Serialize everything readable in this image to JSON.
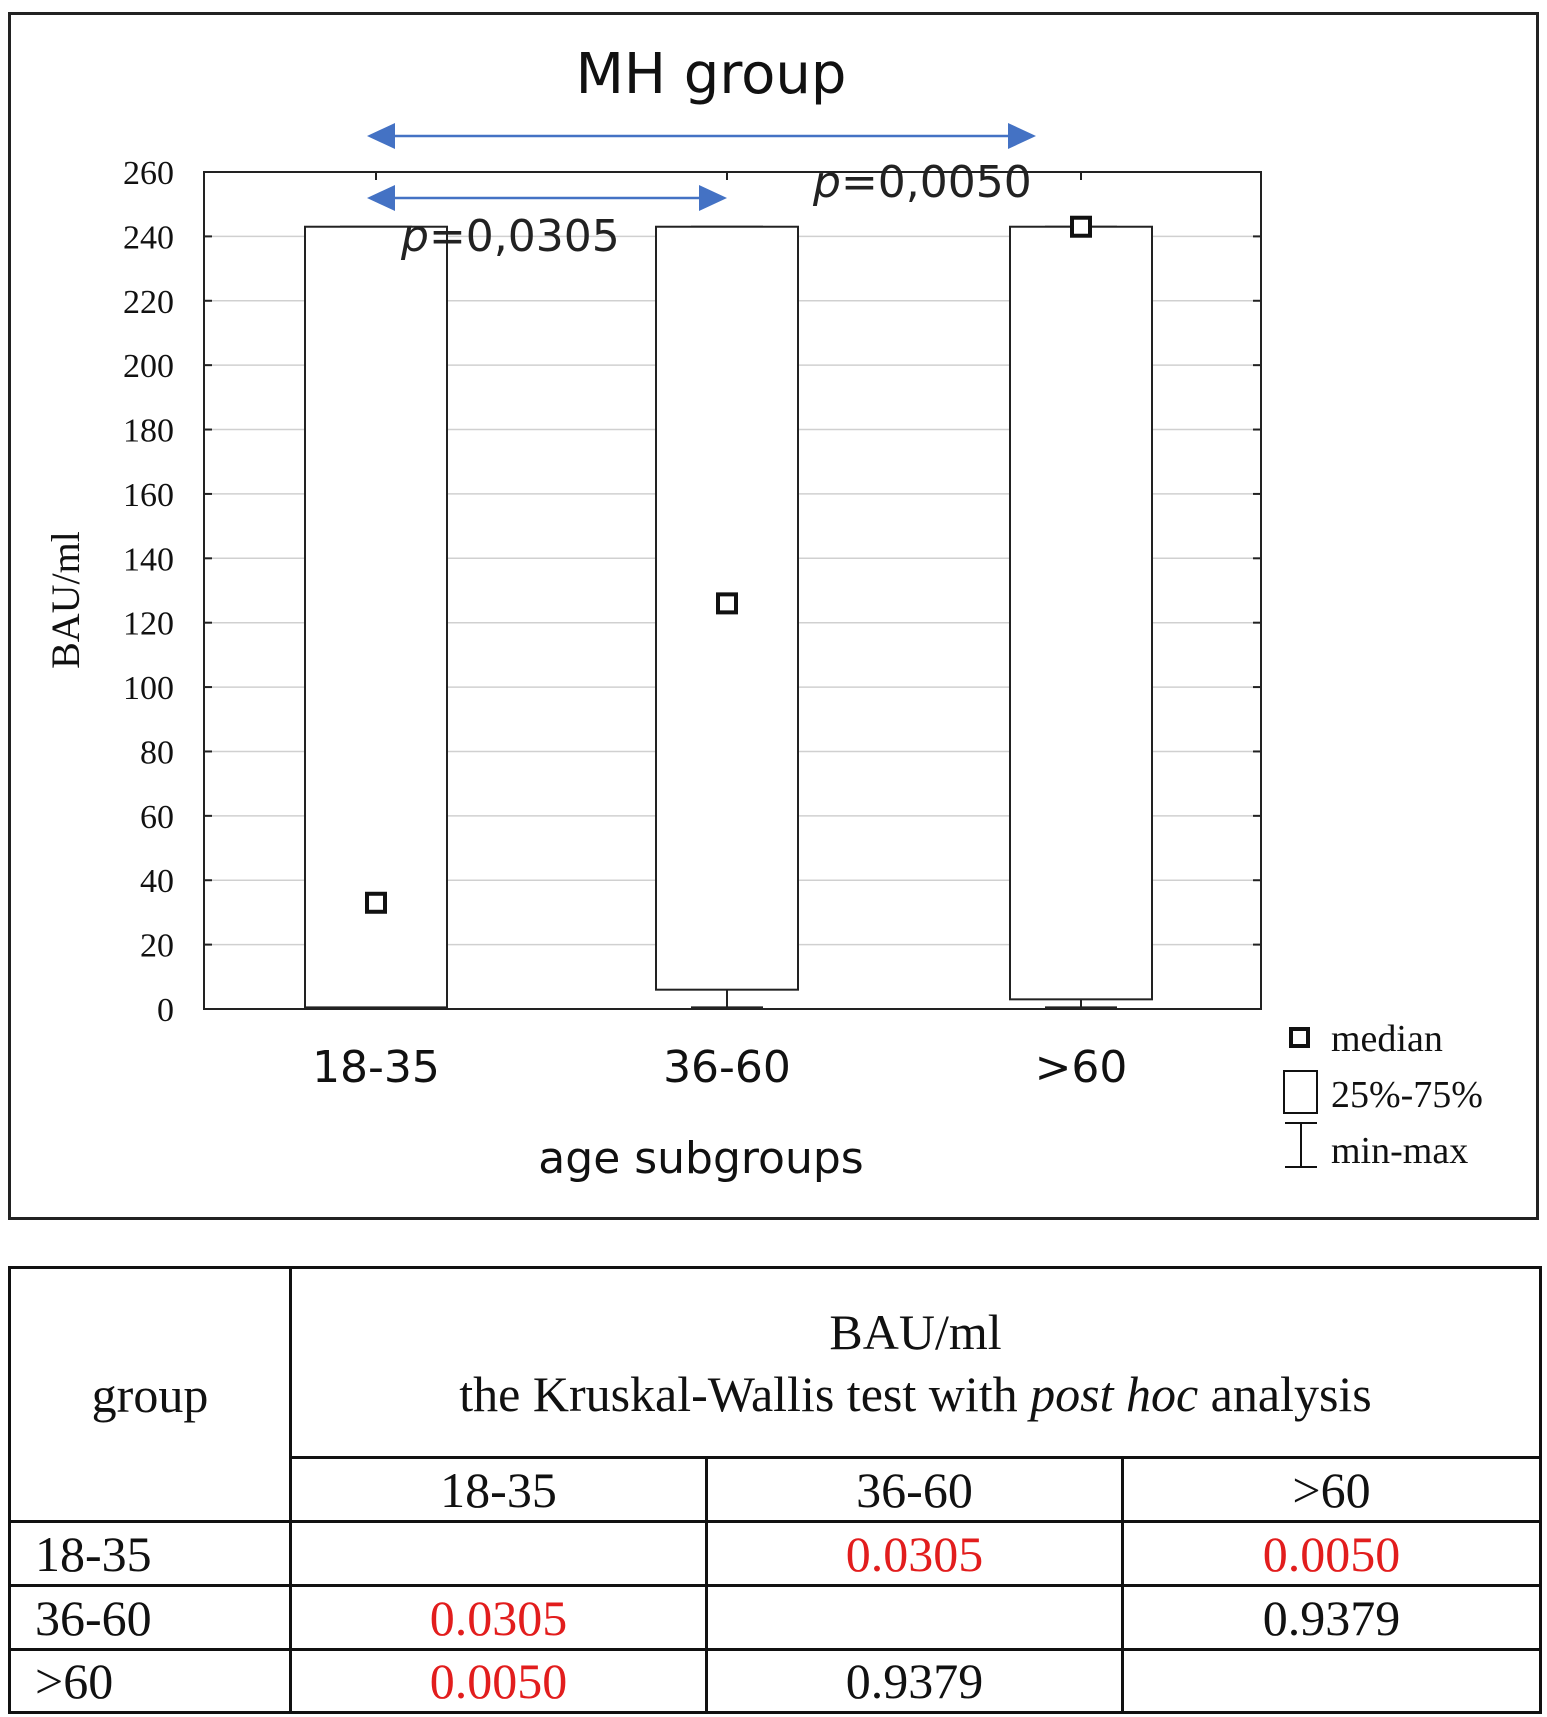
{
  "chart_data": {
    "type": "box",
    "title": "MH group",
    "xlabel": "age subgroups",
    "ylabel": "BAU/ml",
    "ylim": [
      0,
      260
    ],
    "yticks": [
      0,
      20,
      40,
      60,
      80,
      100,
      120,
      140,
      160,
      180,
      200,
      220,
      240,
      260
    ],
    "categories": [
      "18-35",
      "36-60",
      ">60"
    ],
    "boxes": [
      {
        "category": "18-35",
        "median": 33,
        "q1": 0.5,
        "q3": 243,
        "min": 0.5,
        "max": 243
      },
      {
        "category": "36-60",
        "median": 126,
        "q1": 6,
        "q3": 243,
        "min": 0.5,
        "max": 243
      },
      {
        "category": ">60",
        "median": 243,
        "q1": 3,
        "q3": 243,
        "min": 0.5,
        "max": 243
      }
    ],
    "annotations": [
      {
        "from": "18-35",
        "to": "36-60",
        "text": "=0,0305",
        "prefix": "p"
      },
      {
        "from": "18-35",
        "to": ">60",
        "text": "=0,0050",
        "prefix": "p"
      }
    ],
    "legend": {
      "position": "bottom-right",
      "items": [
        "median",
        "25%-75%",
        "min-max"
      ]
    },
    "grid": true
  },
  "table": {
    "group_header": "group",
    "title_line1": "BAU/ml",
    "title_line2_pre": "the Kruskal-Wallis test with ",
    "title_line2_em": "post hoc",
    "title_line2_post": " analysis",
    "columns": [
      "18-35",
      "36-60",
      ">60"
    ],
    "rows": [
      {
        "label": "18-35",
        "cells": [
          "",
          "0.0305",
          "0.0050"
        ],
        "red": [
          false,
          true,
          true
        ]
      },
      {
        "label": "36-60",
        "cells": [
          "0.0305",
          "",
          "0.9379"
        ],
        "red": [
          true,
          false,
          false
        ]
      },
      {
        "label": ">60",
        "cells": [
          "0.0050",
          "0.9379",
          ""
        ],
        "red": [
          true,
          false,
          false
        ]
      }
    ]
  },
  "colors": {
    "arrow": "#4472c4",
    "significant": "#e21d1d",
    "grid": "#d0d0d0"
  }
}
